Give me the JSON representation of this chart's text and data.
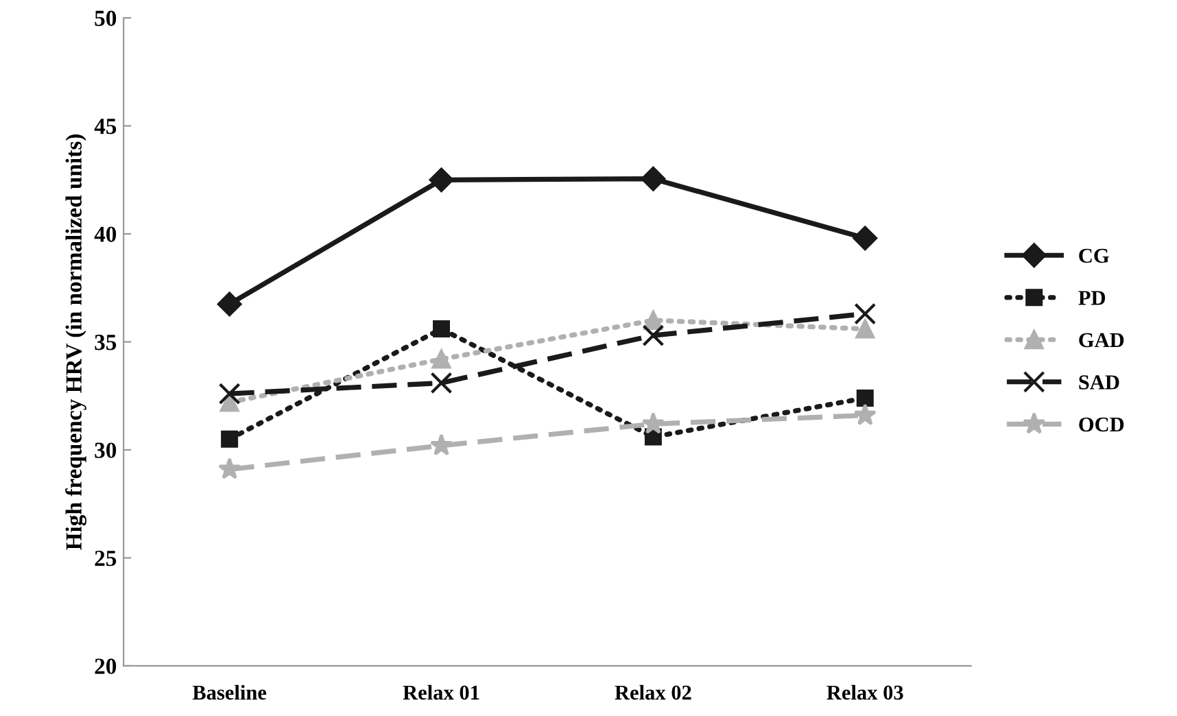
{
  "chart_data": {
    "type": "line",
    "ylabel": "High frequency HRV (in normalized units)",
    "categories": [
      "Baseline",
      "Relax 01",
      "Relax 02",
      "Relax 03"
    ],
    "ylim": [
      20,
      50
    ],
    "yticks": [
      20,
      25,
      30,
      35,
      40,
      45,
      50
    ],
    "grid": false,
    "legend": "right",
    "series": [
      {
        "name": "CG",
        "color": "#1a1a1a",
        "marker": "diamond",
        "line_style": "solid",
        "values": [
          36.75,
          42.5,
          42.55,
          39.8
        ]
      },
      {
        "name": "PD",
        "color": "#1a1a1a",
        "marker": "square",
        "line_style": "dotted",
        "values": [
          30.5,
          35.6,
          30.6,
          32.4
        ]
      },
      {
        "name": "GAD",
        "color": "#b0b0b0",
        "marker": "triangle",
        "line_style": "dotted",
        "values": [
          32.2,
          34.2,
          36.0,
          35.6
        ]
      },
      {
        "name": "SAD",
        "color": "#1a1a1a",
        "marker": "cross",
        "line_style": "dashed",
        "values": [
          32.6,
          33.1,
          35.3,
          36.3
        ]
      },
      {
        "name": "OCD",
        "color": "#b0b0b0",
        "marker": "star",
        "line_style": "dashed",
        "values": [
          29.1,
          30.2,
          31.2,
          31.6
        ]
      }
    ]
  }
}
